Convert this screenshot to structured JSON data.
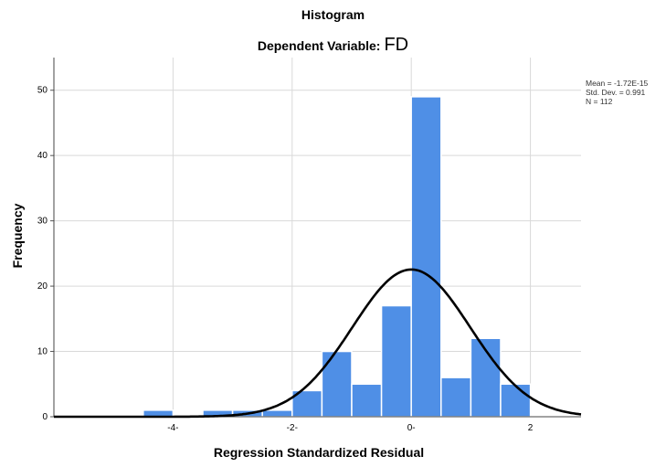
{
  "chart_data": {
    "type": "bar",
    "title": "Histogram",
    "subtitle": "Dependent Variable:",
    "dependent_variable": "FD",
    "xlabel": "Regression Standardized Residual",
    "ylabel": "Frequency",
    "xlim": [
      -6.0,
      2.85
    ],
    "ylim": [
      0,
      55
    ],
    "x_ticks": [
      {
        "value": -4,
        "label": "-4-"
      },
      {
        "value": -2,
        "label": "-2-"
      },
      {
        "value": 0,
        "label": "0-"
      },
      {
        "value": 2,
        "label": "2"
      }
    ],
    "y_ticks": [
      0,
      10,
      20,
      30,
      40,
      50
    ],
    "bin_width": 0.5,
    "bins": [
      {
        "x0": -4.5,
        "count": 1
      },
      {
        "x0": -3.5,
        "count": 1
      },
      {
        "x0": -3.0,
        "count": 1
      },
      {
        "x0": -2.5,
        "count": 1
      },
      {
        "x0": -2.0,
        "count": 4
      },
      {
        "x0": -1.5,
        "count": 10
      },
      {
        "x0": -1.0,
        "count": 5
      },
      {
        "x0": -0.5,
        "count": 17
      },
      {
        "x0": 0.0,
        "count": 49
      },
      {
        "x0": 0.5,
        "count": 6
      },
      {
        "x0": 1.0,
        "count": 12
      },
      {
        "x0": 1.5,
        "count": 5
      }
    ],
    "normal_curve": {
      "mean": 0,
      "sd": 0.991,
      "n": 112
    },
    "bar_color": "#4f8fe6",
    "grid": true,
    "stats": {
      "mean": "Mean = -1.72E-15",
      "std_dev": "Std. Dev. = 0.991",
      "n": "N = 112"
    }
  }
}
